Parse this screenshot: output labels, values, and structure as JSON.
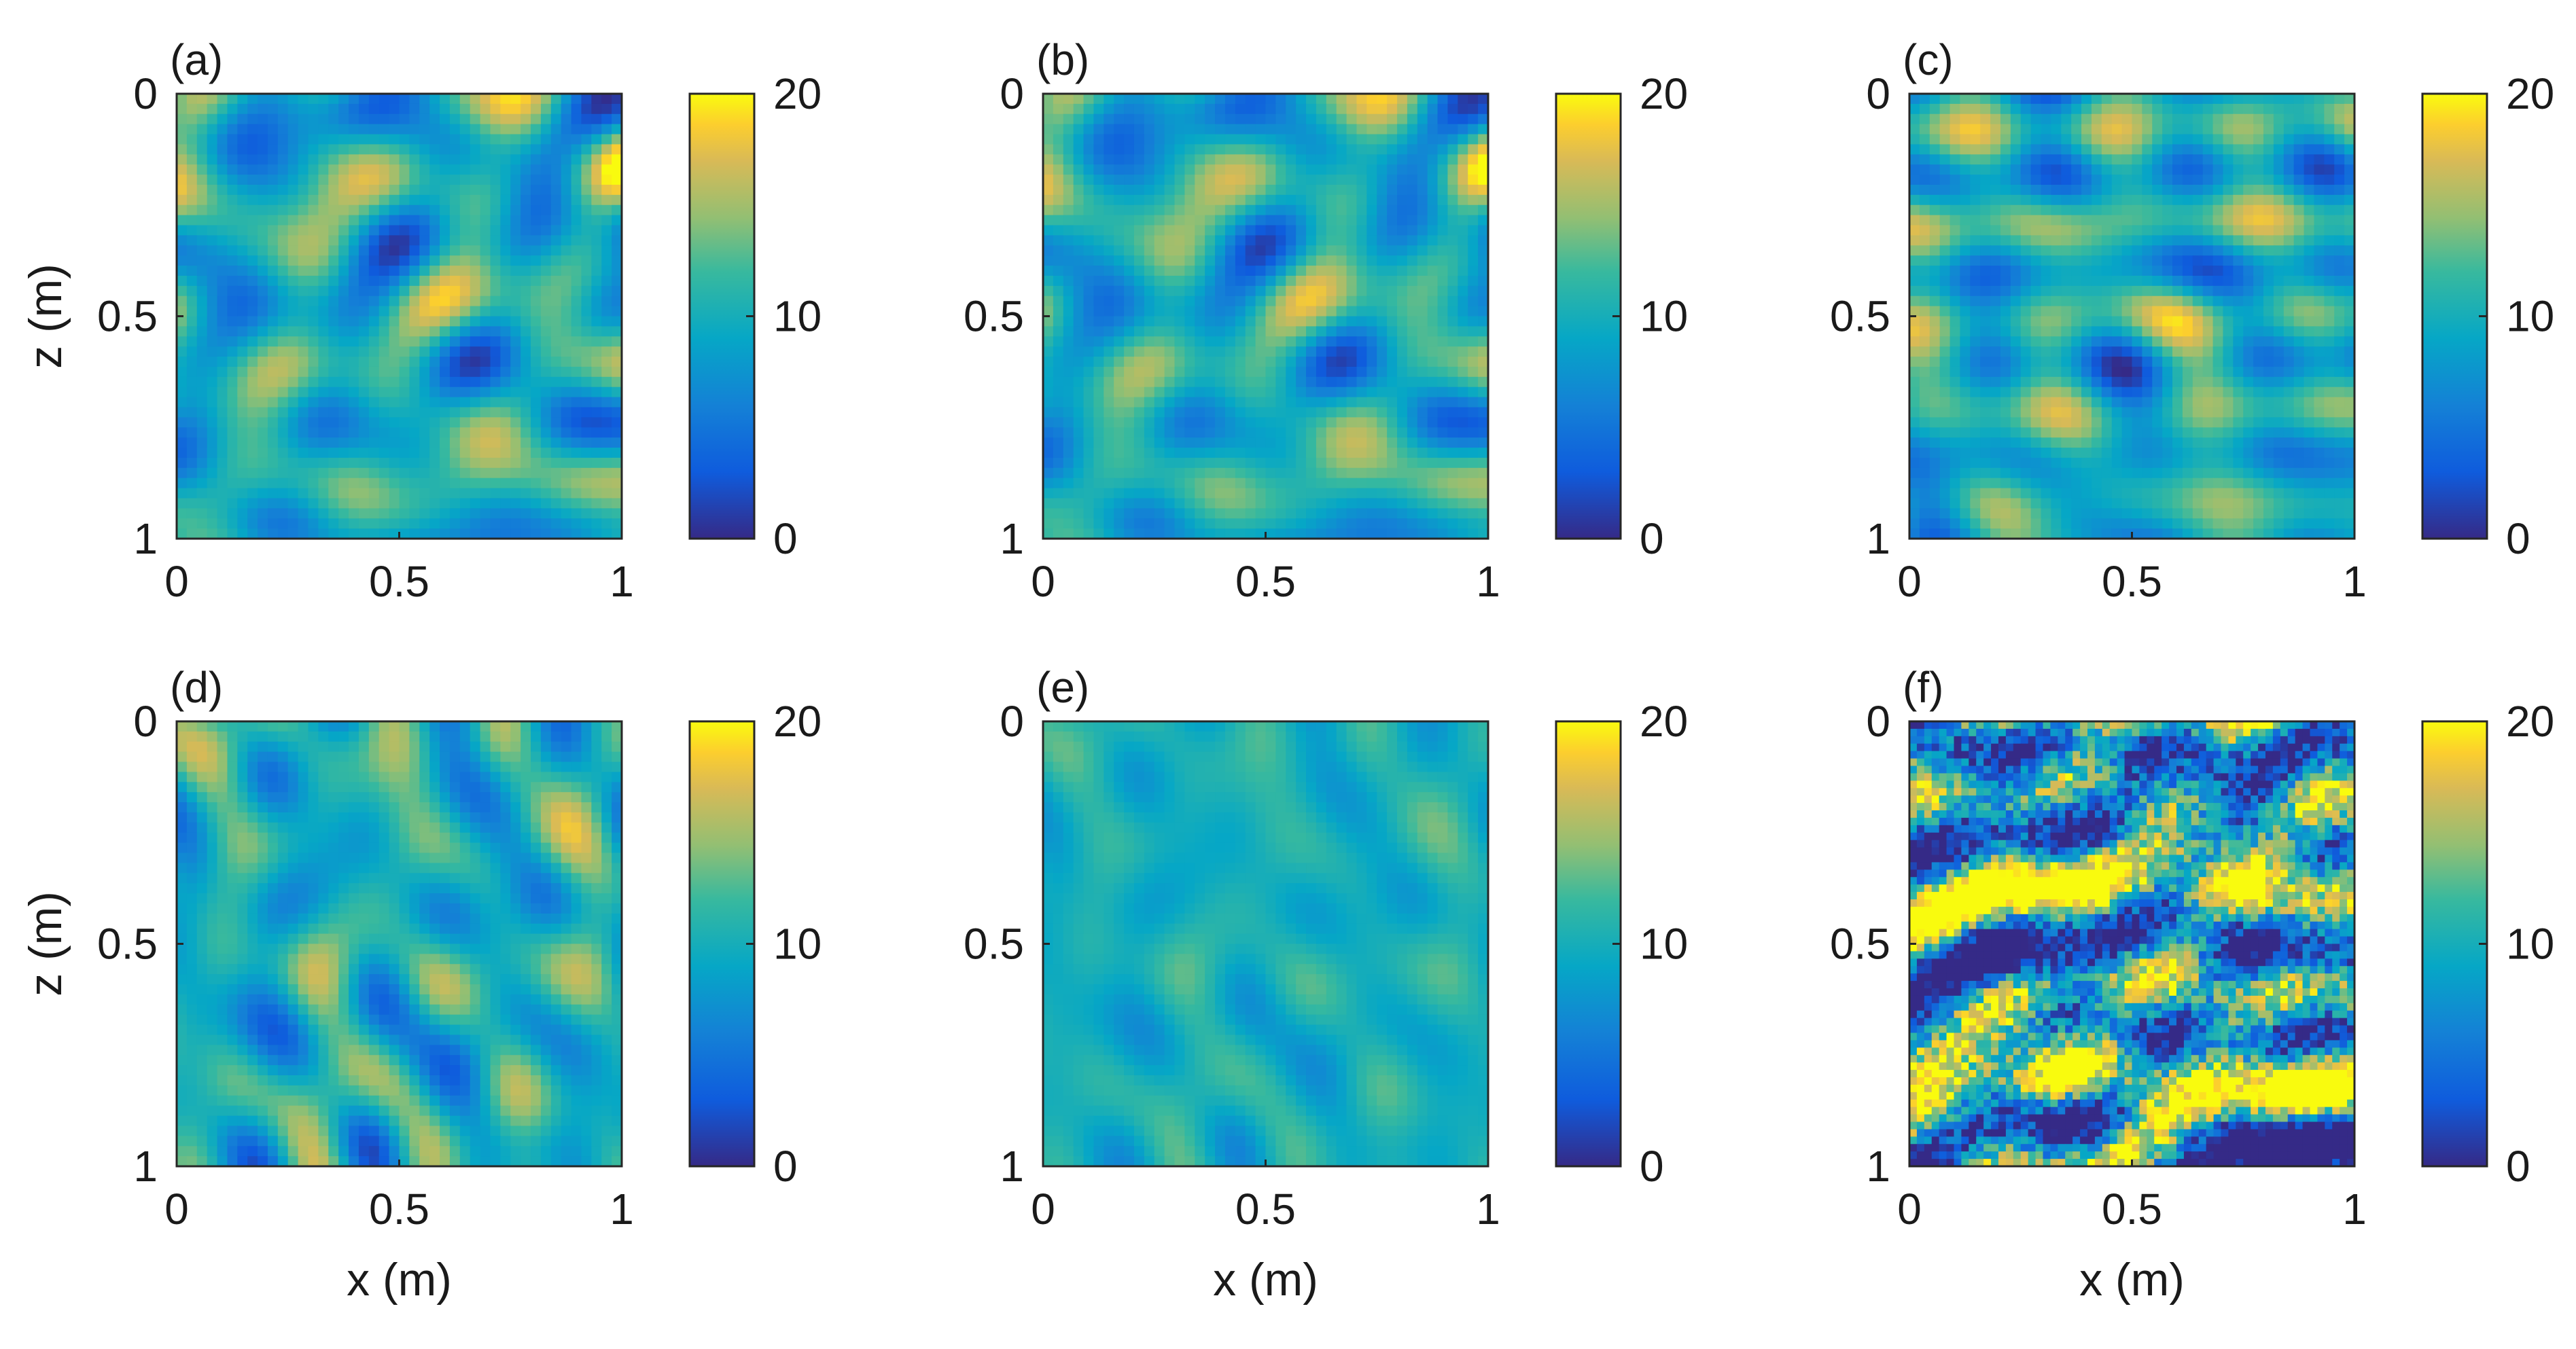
{
  "chart_data": [
    {
      "type": "heatmap",
      "panel_label": "(a)",
      "description_level": "high contrast, smooth blobs",
      "contrast": 0.9,
      "seed": 11,
      "xlabel": "",
      "ylabel": "z (m)",
      "x_ticks": [
        "0",
        "0.5",
        "1"
      ],
      "y_ticks": [
        "0",
        "0.5",
        "1"
      ],
      "xlim": [
        0,
        1
      ],
      "ylim": [
        0,
        1
      ],
      "colorbar": {
        "ticks": [
          "0",
          "10",
          "20"
        ],
        "range": [
          0,
          20
        ]
      }
    },
    {
      "type": "heatmap",
      "panel_label": "(b)",
      "description_level": "high contrast, smooth blobs",
      "contrast": 0.85,
      "seed": 11,
      "xlabel": "",
      "ylabel": "",
      "x_ticks": [
        "0",
        "0.5",
        "1"
      ],
      "y_ticks": [
        "0",
        "0.5",
        "1"
      ],
      "xlim": [
        0,
        1
      ],
      "ylim": [
        0,
        1
      ],
      "colorbar": {
        "ticks": [
          "0",
          "10",
          "20"
        ],
        "range": [
          0,
          20
        ]
      }
    },
    {
      "type": "heatmap",
      "panel_label": "(c)",
      "description_level": "medium contrast, elongated blobs",
      "contrast": 0.75,
      "seed": 29,
      "xlabel": "",
      "ylabel": "",
      "x_ticks": [
        "0",
        "0.5",
        "1"
      ],
      "y_ticks": [
        "0",
        "0.5",
        "1"
      ],
      "xlim": [
        0,
        1
      ],
      "ylim": [
        0,
        1
      ],
      "colorbar": {
        "ticks": [
          "0",
          "10",
          "20"
        ],
        "range": [
          0,
          20
        ]
      }
    },
    {
      "type": "heatmap",
      "panel_label": "(d)",
      "description_level": "medium contrast, elongated blobs",
      "contrast": 0.65,
      "seed": 47,
      "xlabel": "x (m)",
      "ylabel": "z (m)",
      "x_ticks": [
        "0",
        "0.5",
        "1"
      ],
      "y_ticks": [
        "0",
        "0.5",
        "1"
      ],
      "xlim": [
        0,
        1
      ],
      "ylim": [
        0,
        1
      ],
      "colorbar": {
        "ticks": [
          "0",
          "10",
          "20"
        ],
        "range": [
          0,
          20
        ]
      }
    },
    {
      "type": "heatmap",
      "panel_label": "(e)",
      "description_level": "low contrast, smooth",
      "contrast": 0.3,
      "seed": 47,
      "xlabel": "x (m)",
      "ylabel": "",
      "x_ticks": [
        "0",
        "0.5",
        "1"
      ],
      "y_ticks": [
        "0",
        "0.5",
        "1"
      ],
      "xlim": [
        0,
        1
      ],
      "ylim": [
        0,
        1
      ],
      "colorbar": {
        "ticks": [
          "0",
          "10",
          "20"
        ],
        "range": [
          0,
          20
        ]
      }
    },
    {
      "type": "heatmap",
      "panel_label": "(f)",
      "description_level": "very high contrast, noisy",
      "contrast": 1.6,
      "seed": 83,
      "noisy": true,
      "xlabel": "x (m)",
      "ylabel": "",
      "x_ticks": [
        "0",
        "0.5",
        "1"
      ],
      "y_ticks": [
        "0",
        "0.5",
        "1"
      ],
      "xlim": [
        0,
        1
      ],
      "ylim": [
        0,
        1
      ],
      "colorbar": {
        "ticks": [
          "0",
          "10",
          "20"
        ],
        "range": [
          0,
          20
        ]
      }
    }
  ]
}
